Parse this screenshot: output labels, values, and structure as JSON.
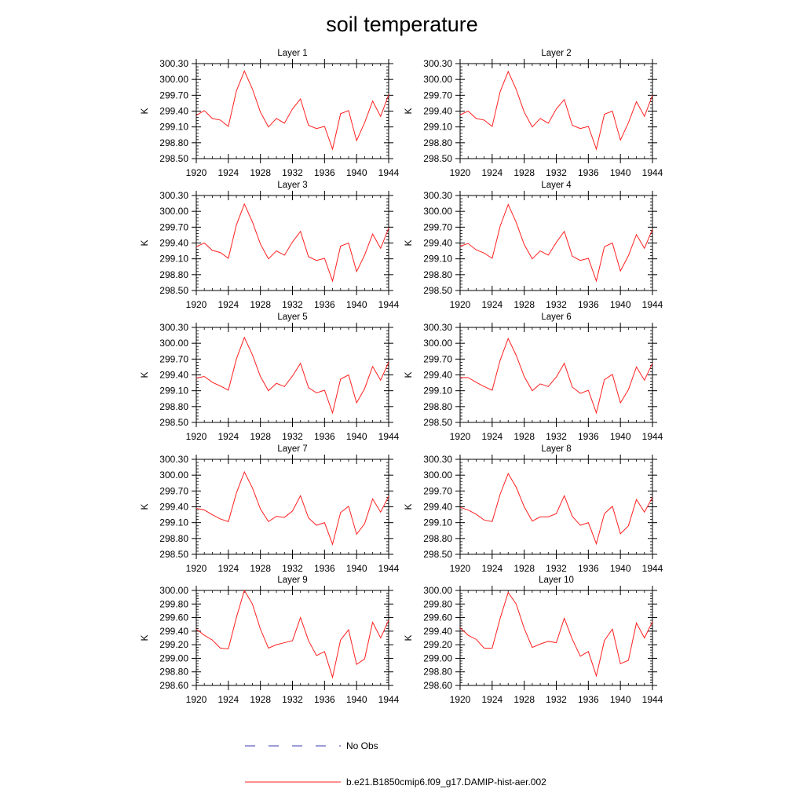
{
  "title": "soil temperature",
  "legend": [
    {
      "label": "No Obs",
      "color": "#3b3bb0",
      "dash": true
    },
    {
      "label": "b.e21.B1850cmip6.f09_g17.DAMIP-hist-aer.002",
      "color": "#ff2020",
      "dash": false
    }
  ],
  "chart_data": [
    {
      "type": "line",
      "title": "Layer 1",
      "ylabel": "K",
      "xlim": [
        1920,
        1944
      ],
      "ylim": [
        298.5,
        300.3
      ],
      "xticks": [
        "1920",
        "1924",
        "1928",
        "1932",
        "1936",
        "1940",
        "1944"
      ],
      "yticks": [
        "298.50",
        "298.80",
        "299.10",
        "299.40",
        "299.70",
        "300.00",
        "300.30"
      ],
      "x": [
        1920,
        1921,
        1922,
        1923,
        1924,
        1925,
        1926,
        1927,
        1928,
        1929,
        1930,
        1931,
        1932,
        1933,
        1934,
        1935,
        1936,
        1937,
        1938,
        1939,
        1940,
        1941,
        1942,
        1943,
        1944
      ],
      "series": [
        {
          "name": "b.e21.B1850cmip6.f09_g17.DAMIP-hist-aer.002",
          "color": "#ff2020",
          "values": [
            299.32,
            299.41,
            299.26,
            299.23,
            299.11,
            299.78,
            300.16,
            299.82,
            299.38,
            299.1,
            299.26,
            299.17,
            299.44,
            299.63,
            299.13,
            299.07,
            299.11,
            298.68,
            299.35,
            299.41,
            298.84,
            299.18,
            299.59,
            299.3,
            299.71
          ]
        }
      ]
    },
    {
      "type": "line",
      "title": "Layer 2",
      "ylabel": "K",
      "xlim": [
        1920,
        1944
      ],
      "ylim": [
        298.5,
        300.3
      ],
      "xticks": [
        "1920",
        "1924",
        "1928",
        "1932",
        "1936",
        "1940",
        "1944"
      ],
      "yticks": [
        "298.50",
        "298.80",
        "299.10",
        "299.40",
        "299.70",
        "300.00",
        "300.30"
      ],
      "x": [
        1920,
        1921,
        1922,
        1923,
        1924,
        1925,
        1926,
        1927,
        1928,
        1929,
        1930,
        1931,
        1932,
        1933,
        1934,
        1935,
        1936,
        1937,
        1938,
        1939,
        1940,
        1941,
        1942,
        1943,
        1944
      ],
      "series": [
        {
          "name": "b.e21.B1850cmip6.f09_g17.DAMIP-hist-aer.002",
          "color": "#ff2020",
          "values": [
            299.33,
            299.4,
            299.26,
            299.23,
            299.11,
            299.77,
            300.15,
            299.81,
            299.38,
            299.1,
            299.26,
            299.17,
            299.44,
            299.62,
            299.13,
            299.07,
            299.11,
            298.68,
            299.34,
            299.4,
            298.85,
            299.18,
            299.58,
            299.3,
            299.7
          ]
        }
      ]
    },
    {
      "type": "line",
      "title": "Layer 3",
      "ylabel": "K",
      "xlim": [
        1920,
        1944
      ],
      "ylim": [
        298.5,
        300.3
      ],
      "xticks": [
        "1920",
        "1924",
        "1928",
        "1932",
        "1936",
        "1940",
        "1944"
      ],
      "yticks": [
        "298.50",
        "298.80",
        "299.10",
        "299.40",
        "299.70",
        "300.00",
        "300.30"
      ],
      "x": [
        1920,
        1921,
        1922,
        1923,
        1924,
        1925,
        1926,
        1927,
        1928,
        1929,
        1930,
        1931,
        1932,
        1933,
        1934,
        1935,
        1936,
        1937,
        1938,
        1939,
        1940,
        1941,
        1942,
        1943,
        1944
      ],
      "series": [
        {
          "name": "b.e21.B1850cmip6.f09_g17.DAMIP-hist-aer.002",
          "color": "#ff2020",
          "values": [
            299.33,
            299.4,
            299.26,
            299.22,
            299.11,
            299.74,
            300.14,
            299.8,
            299.38,
            299.1,
            299.25,
            299.17,
            299.42,
            299.62,
            299.14,
            299.07,
            299.11,
            298.68,
            299.34,
            299.4,
            298.86,
            299.17,
            299.57,
            299.3,
            299.68
          ]
        }
      ]
    },
    {
      "type": "line",
      "title": "Layer 4",
      "ylabel": "K",
      "xlim": [
        1920,
        1944
      ],
      "ylim": [
        298.5,
        300.3
      ],
      "xticks": [
        "1920",
        "1924",
        "1928",
        "1932",
        "1936",
        "1940",
        "1944"
      ],
      "yticks": [
        "298.50",
        "298.80",
        "299.10",
        "299.40",
        "299.70",
        "300.00",
        "300.30"
      ],
      "x": [
        1920,
        1921,
        1922,
        1923,
        1924,
        1925,
        1926,
        1927,
        1928,
        1929,
        1930,
        1931,
        1932,
        1933,
        1934,
        1935,
        1936,
        1937,
        1938,
        1939,
        1940,
        1941,
        1942,
        1943,
        1944
      ],
      "series": [
        {
          "name": "b.e21.B1850cmip6.f09_g17.DAMIP-hist-aer.002",
          "color": "#ff2020",
          "values": [
            299.34,
            299.39,
            299.27,
            299.21,
            299.11,
            299.72,
            300.13,
            299.79,
            299.37,
            299.1,
            299.25,
            299.17,
            299.41,
            299.62,
            299.15,
            299.07,
            299.11,
            298.68,
            299.33,
            299.4,
            298.87,
            299.16,
            299.56,
            299.3,
            299.66
          ]
        }
      ]
    },
    {
      "type": "line",
      "title": "Layer 5",
      "ylabel": "K",
      "xlim": [
        1920,
        1944
      ],
      "ylim": [
        298.5,
        300.3
      ],
      "xticks": [
        "1920",
        "1924",
        "1928",
        "1932",
        "1936",
        "1940",
        "1944"
      ],
      "yticks": [
        "298.50",
        "298.80",
        "299.10",
        "299.40",
        "299.70",
        "300.00",
        "300.30"
      ],
      "x": [
        1920,
        1921,
        1922,
        1923,
        1924,
        1925,
        1926,
        1927,
        1928,
        1929,
        1930,
        1931,
        1932,
        1933,
        1934,
        1935,
        1936,
        1937,
        1938,
        1939,
        1940,
        1941,
        1942,
        1943,
        1944
      ],
      "series": [
        {
          "name": "b.e21.B1850cmip6.f09_g17.DAMIP-hist-aer.002",
          "color": "#ff2020",
          "values": [
            299.34,
            299.37,
            299.26,
            299.19,
            299.11,
            299.7,
            300.11,
            299.78,
            299.37,
            299.1,
            299.24,
            299.18,
            299.38,
            299.62,
            299.16,
            299.06,
            299.11,
            298.68,
            299.32,
            299.4,
            298.87,
            299.14,
            299.56,
            299.3,
            299.64
          ]
        }
      ]
    },
    {
      "type": "line",
      "title": "Layer 6",
      "ylabel": "K",
      "xlim": [
        1920,
        1944
      ],
      "ylim": [
        298.5,
        300.3
      ],
      "xticks": [
        "1920",
        "1924",
        "1928",
        "1932",
        "1936",
        "1940",
        "1944"
      ],
      "yticks": [
        "298.50",
        "298.80",
        "299.10",
        "299.40",
        "299.70",
        "300.00",
        "300.30"
      ],
      "x": [
        1920,
        1921,
        1922,
        1923,
        1924,
        1925,
        1926,
        1927,
        1928,
        1929,
        1930,
        1931,
        1932,
        1933,
        1934,
        1935,
        1936,
        1937,
        1938,
        1939,
        1940,
        1941,
        1942,
        1943,
        1944
      ],
      "series": [
        {
          "name": "b.e21.B1850cmip6.f09_g17.DAMIP-hist-aer.002",
          "color": "#ff2020",
          "values": [
            299.35,
            299.35,
            299.26,
            299.18,
            299.11,
            299.68,
            300.09,
            299.77,
            299.37,
            299.1,
            299.23,
            299.18,
            299.36,
            299.62,
            299.17,
            299.05,
            299.11,
            298.68,
            299.31,
            299.41,
            298.87,
            299.12,
            299.55,
            299.3,
            299.62
          ]
        }
      ]
    },
    {
      "type": "line",
      "title": "Layer 7",
      "ylabel": "K",
      "xlim": [
        1920,
        1944
      ],
      "ylim": [
        298.5,
        300.3
      ],
      "xticks": [
        "1920",
        "1924",
        "1928",
        "1932",
        "1936",
        "1940",
        "1944"
      ],
      "yticks": [
        "298.50",
        "298.80",
        "299.10",
        "299.40",
        "299.70",
        "300.00",
        "300.30"
      ],
      "x": [
        1920,
        1921,
        1922,
        1923,
        1924,
        1925,
        1926,
        1927,
        1928,
        1929,
        1930,
        1931,
        1932,
        1933,
        1934,
        1935,
        1936,
        1937,
        1938,
        1939,
        1940,
        1941,
        1942,
        1943,
        1944
      ],
      "series": [
        {
          "name": "b.e21.B1850cmip6.f09_g17.DAMIP-hist-aer.002",
          "color": "#ff2020",
          "values": [
            299.37,
            299.34,
            299.25,
            299.17,
            299.12,
            299.66,
            300.06,
            299.76,
            299.36,
            299.12,
            299.22,
            299.2,
            299.32,
            299.61,
            299.19,
            299.05,
            299.1,
            298.69,
            299.29,
            299.41,
            298.88,
            299.08,
            299.55,
            299.3,
            299.6
          ]
        }
      ]
    },
    {
      "type": "line",
      "title": "Layer 8",
      "ylabel": "K",
      "xlim": [
        1920,
        1944
      ],
      "ylim": [
        298.5,
        300.3
      ],
      "xticks": [
        "1920",
        "1924",
        "1928",
        "1932",
        "1936",
        "1940",
        "1944"
      ],
      "yticks": [
        "298.50",
        "298.80",
        "299.10",
        "299.40",
        "299.70",
        "300.00",
        "300.30"
      ],
      "x": [
        1920,
        1921,
        1922,
        1923,
        1924,
        1925,
        1926,
        1927,
        1928,
        1929,
        1930,
        1931,
        1932,
        1933,
        1934,
        1935,
        1936,
        1937,
        1938,
        1939,
        1940,
        1941,
        1942,
        1943,
        1944
      ],
      "series": [
        {
          "name": "b.e21.B1850cmip6.f09_g17.DAMIP-hist-aer.002",
          "color": "#ff2020",
          "values": [
            299.39,
            299.34,
            299.26,
            299.15,
            299.12,
            299.64,
            300.03,
            299.77,
            299.4,
            299.13,
            299.21,
            299.21,
            299.27,
            299.61,
            299.22,
            299.05,
            299.1,
            298.7,
            299.27,
            299.41,
            298.89,
            299.04,
            299.54,
            299.3,
            299.58
          ]
        }
      ]
    },
    {
      "type": "line",
      "title": "Layer 9",
      "ylabel": "K",
      "xlim": [
        1920,
        1944
      ],
      "ylim": [
        298.6,
        300.0
      ],
      "xticks": [
        "1920",
        "1924",
        "1928",
        "1932",
        "1936",
        "1940",
        "1944"
      ],
      "yticks": [
        "298.60",
        "298.80",
        "299.00",
        "299.20",
        "299.40",
        "299.60",
        "299.80",
        "300.00"
      ],
      "x": [
        1920,
        1921,
        1922,
        1923,
        1924,
        1925,
        1926,
        1927,
        1928,
        1929,
        1930,
        1931,
        1932,
        1933,
        1934,
        1935,
        1936,
        1937,
        1938,
        1939,
        1940,
        1941,
        1942,
        1943,
        1944
      ],
      "series": [
        {
          "name": "b.e21.B1850cmip6.f09_g17.DAMIP-hist-aer.002",
          "color": "#ff2020",
          "values": [
            299.43,
            299.34,
            299.27,
            299.15,
            299.14,
            299.6,
            300.0,
            299.8,
            299.43,
            299.15,
            299.2,
            299.23,
            299.26,
            299.6,
            299.26,
            299.04,
            299.1,
            298.72,
            299.27,
            299.42,
            298.91,
            298.99,
            299.53,
            299.3,
            299.56
          ]
        }
      ]
    },
    {
      "type": "line",
      "title": "Layer 10",
      "ylabel": "K",
      "xlim": [
        1920,
        1944
      ],
      "ylim": [
        298.6,
        300.0
      ],
      "xticks": [
        "1920",
        "1924",
        "1928",
        "1932",
        "1936",
        "1940",
        "1944"
      ],
      "yticks": [
        "298.60",
        "298.80",
        "299.00",
        "299.20",
        "299.40",
        "299.60",
        "299.80",
        "300.00"
      ],
      "x": [
        1920,
        1921,
        1922,
        1923,
        1924,
        1925,
        1926,
        1927,
        1928,
        1929,
        1930,
        1931,
        1932,
        1933,
        1934,
        1935,
        1936,
        1937,
        1938,
        1939,
        1940,
        1941,
        1942,
        1943,
        1944
      ],
      "series": [
        {
          "name": "b.e21.B1850cmip6.f09_g17.DAMIP-hist-aer.002",
          "color": "#ff2020",
          "values": [
            299.45,
            299.34,
            299.28,
            299.15,
            299.15,
            299.59,
            299.97,
            299.8,
            299.44,
            299.16,
            299.21,
            299.25,
            299.23,
            299.59,
            299.28,
            299.03,
            299.1,
            298.74,
            299.26,
            299.43,
            298.92,
            298.97,
            299.52,
            299.3,
            299.54
          ]
        }
      ]
    }
  ]
}
